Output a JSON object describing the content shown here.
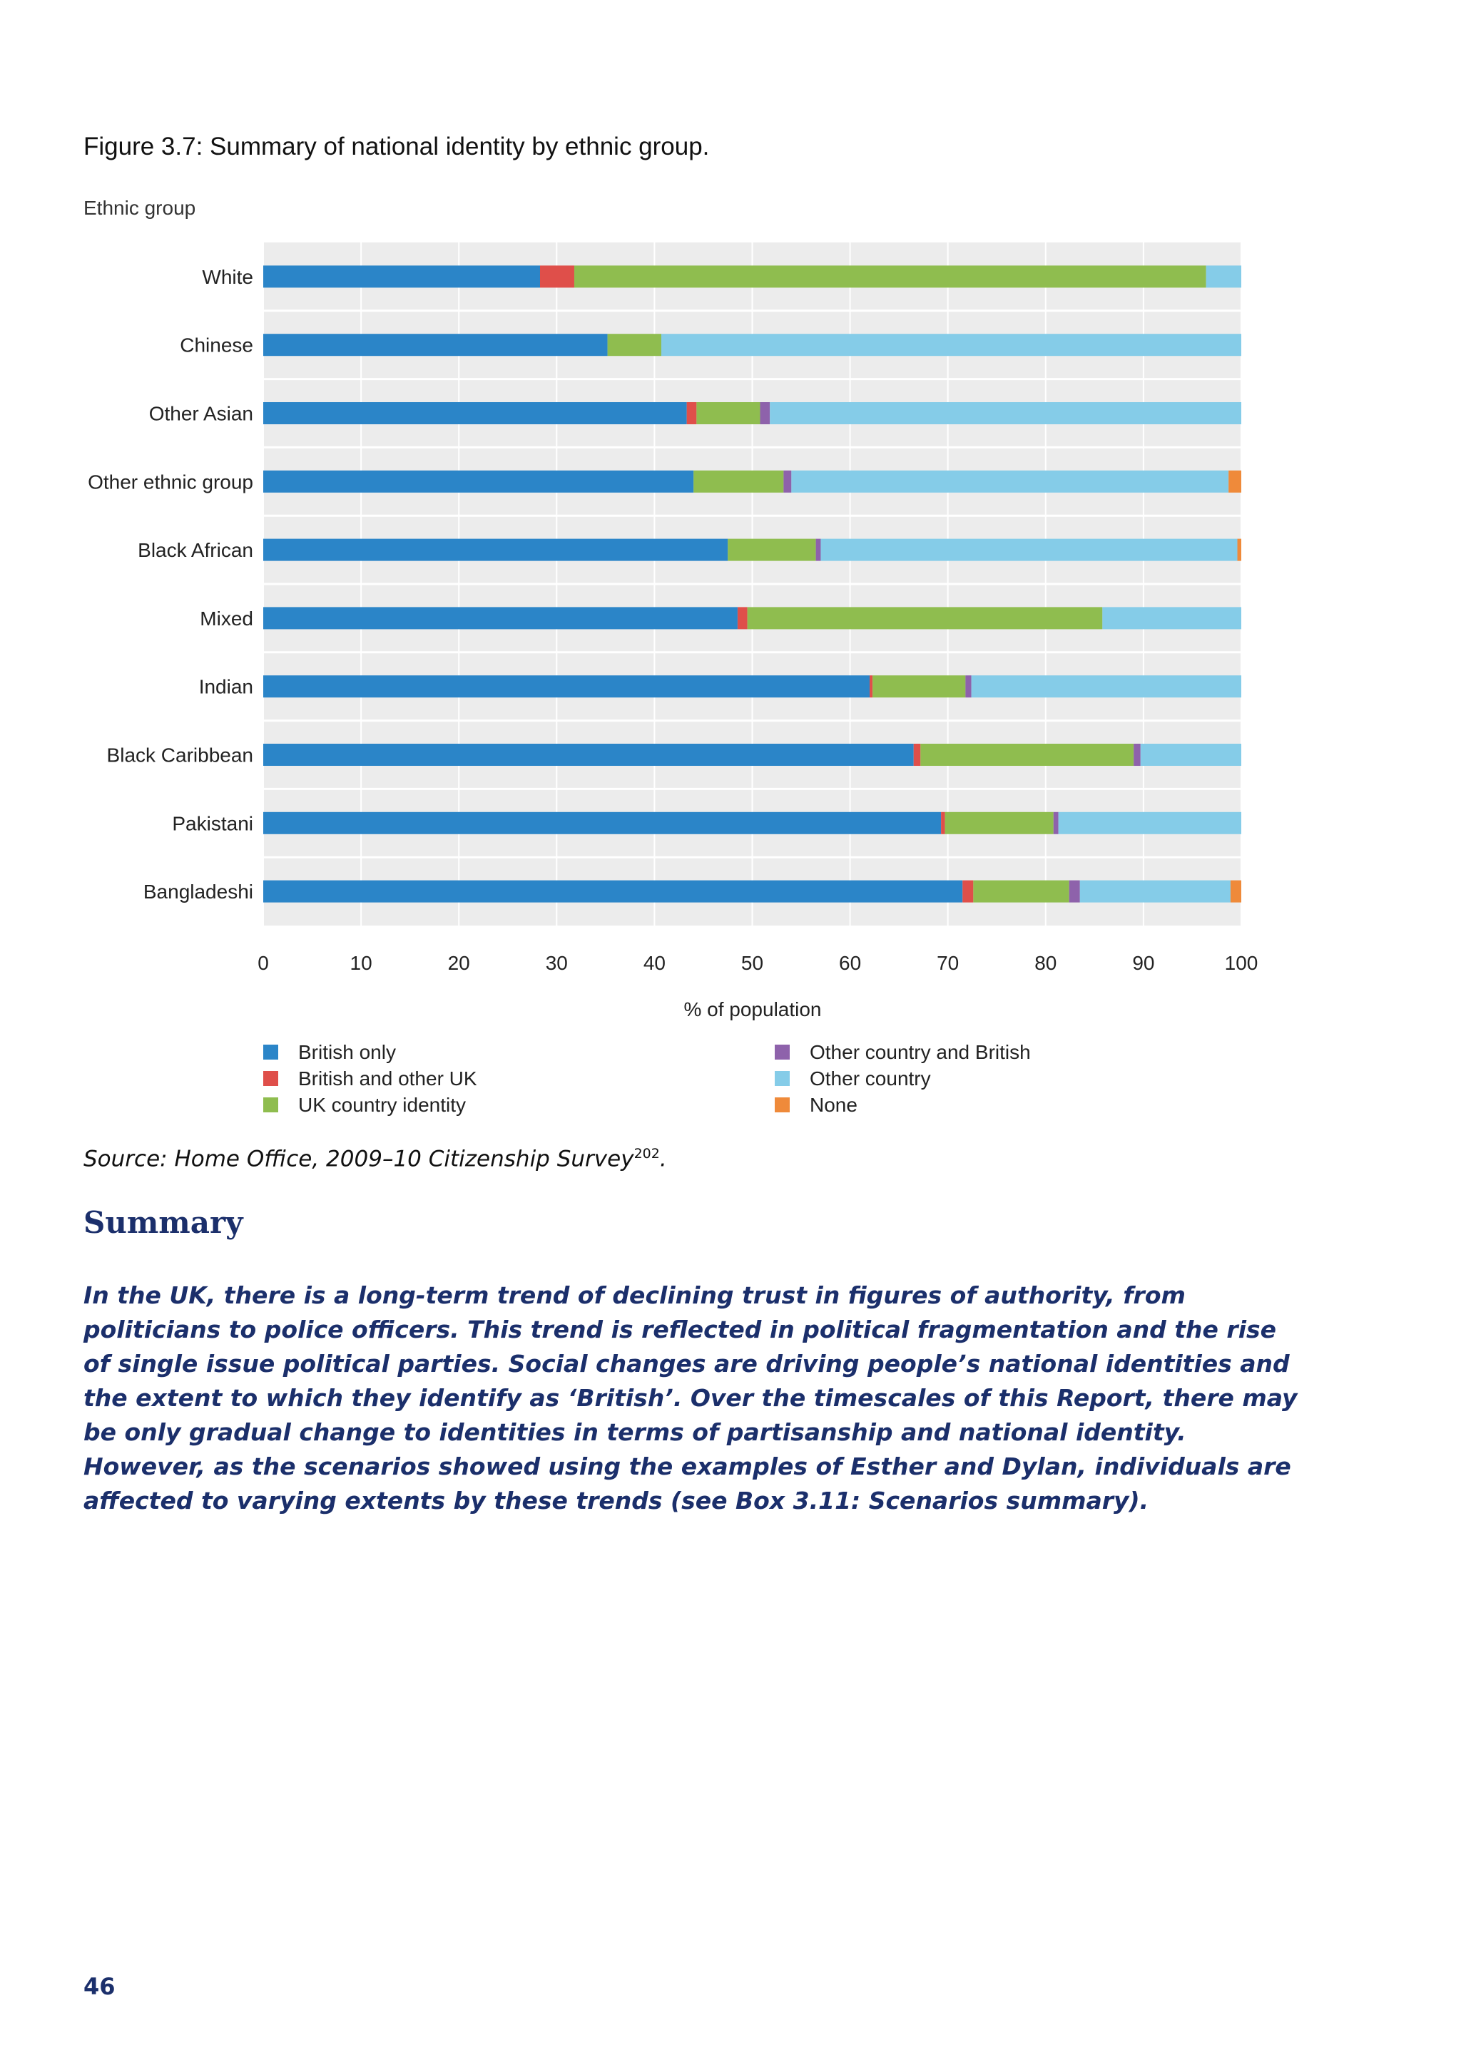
{
  "figure_title": "Figure 3.7: Summary of national identity by ethnic group.",
  "source": {
    "text": "Source: Home Office, 2009–10 Citizenship Survey",
    "footnote": "202",
    "end": "."
  },
  "summary": {
    "heading": "Summary",
    "body": "In the UK, there is a long-term trend of declining trust in figures of authority, from politicians to police officers. This trend is reflected in political fragmentation and the rise of single issue political parties. Social changes are driving people’s national identities and the extent to which they identify as ‘British’. Over the timescales of this Report, there may be only gradual change to identities in terms of partisanship and national identity. However, as the scenarios showed using the examples of Esther and Dylan, individuals are affected to varying extents by these trends (see Box 3.11: Scenarios summary)."
  },
  "page_number": "46",
  "chart_data": {
    "type": "bar",
    "orientation": "horizontal",
    "stacked": true,
    "title": "",
    "ylabel": "Ethnic group",
    "xlabel": "% of population",
    "xlim": [
      0,
      100
    ],
    "xticks": [
      0,
      10,
      20,
      30,
      40,
      50,
      60,
      70,
      80,
      90,
      100
    ],
    "grid": true,
    "legend_position": "bottom",
    "categories": [
      "White",
      "Chinese",
      "Other Asian",
      "Other ethnic group",
      "Black African",
      "Mixed",
      "Indian",
      "Black Caribbean",
      "Pakistani",
      "Bangladeshi"
    ],
    "series": [
      {
        "name": "British only",
        "color": "#2b85c8",
        "values": [
          28.3,
          35.2,
          43.3,
          44.0,
          47.5,
          48.5,
          62.0,
          66.5,
          69.3,
          71.5
        ]
      },
      {
        "name": "British and other UK",
        "color": "#df4f4a",
        "values": [
          3.5,
          0.0,
          1.0,
          0.0,
          0.0,
          1.0,
          0.3,
          0.7,
          0.4,
          1.1
        ]
      },
      {
        "name": "UK country identity",
        "color": "#8fbd4f",
        "values": [
          64.6,
          5.5,
          6.5,
          9.2,
          9.0,
          36.3,
          9.5,
          21.8,
          11.1,
          9.8
        ]
      },
      {
        "name": "Other country and British",
        "color": "#8e62ab",
        "values": [
          0.0,
          0.0,
          1.0,
          0.8,
          0.5,
          0.0,
          0.6,
          0.7,
          0.5,
          1.1
        ]
      },
      {
        "name": "Other country",
        "color": "#85cce8",
        "values": [
          3.6,
          59.3,
          48.2,
          44.7,
          42.6,
          14.2,
          27.6,
          10.3,
          18.7,
          15.4
        ]
      },
      {
        "name": "None",
        "color": "#ef8a3a",
        "values": [
          0.0,
          0.0,
          0.0,
          1.3,
          0.4,
          0.0,
          0.0,
          0.0,
          0.0,
          1.1
        ]
      }
    ]
  }
}
